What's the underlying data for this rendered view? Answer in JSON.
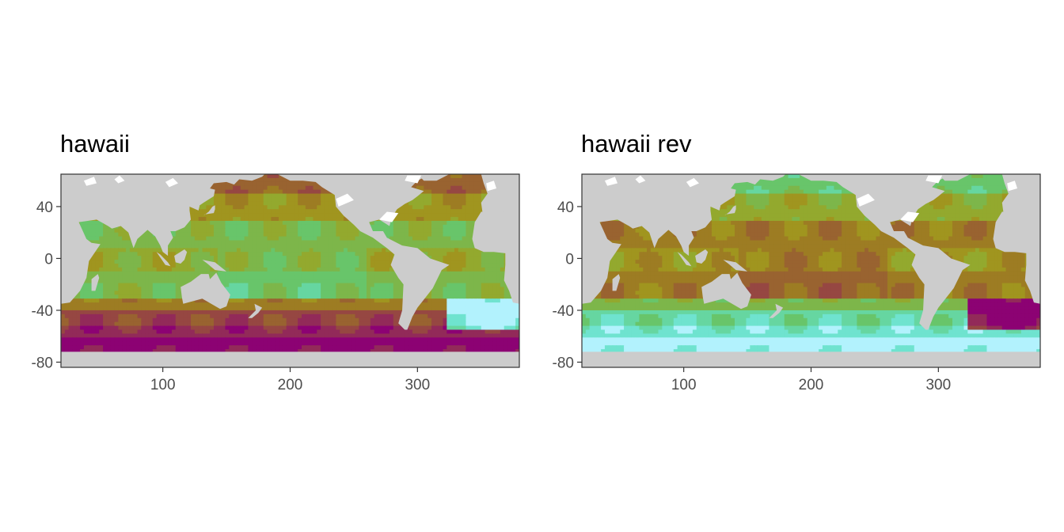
{
  "panels": [
    {
      "title": "hawaii",
      "palette": "hawaii",
      "colors": [
        "#8c0273",
        "#922a59",
        "#964742",
        "#996330",
        "#9d7c23",
        "#a0951f",
        "#93a92e",
        "#7db64a",
        "#68c56a",
        "#66d6a1",
        "#6fe3cf",
        "#b2f2fd"
      ]
    },
    {
      "title": "hawaii rev",
      "palette": "hawaii_reversed",
      "colors": [
        "#b2f2fd",
        "#6fe3cf",
        "#66d6a1",
        "#68c56a",
        "#7db64a",
        "#93a92e",
        "#a0951f",
        "#9d7c23",
        "#996330",
        "#964742",
        "#922a59",
        "#8c0273"
      ]
    }
  ],
  "axes": {
    "x_ticks": [
      100,
      200,
      300
    ],
    "y_ticks": [
      40,
      0,
      -40,
      -80
    ],
    "x_range": [
      20,
      380
    ],
    "y_range": [
      -84,
      65
    ]
  },
  "colors": {
    "land": "#cccccc",
    "ice_or_missing": "#ffffff",
    "panel_border": "#333333"
  },
  "legend": "none"
}
